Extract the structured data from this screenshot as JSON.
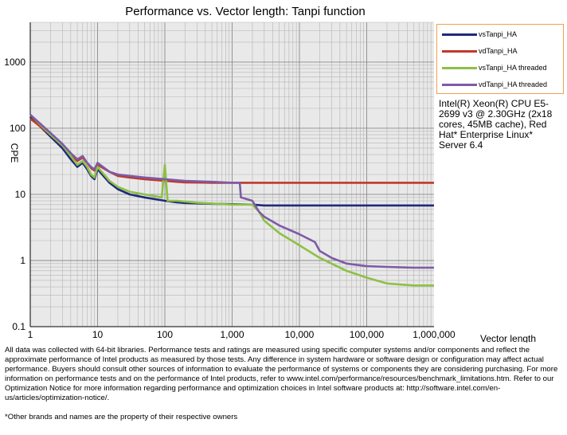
{
  "chart_data": {
    "type": "line",
    "title": "Performance vs. Vector length: Tanpi function",
    "xlabel": "Vector length",
    "ylabel": "CPE",
    "x_scale": "log",
    "y_scale": "log",
    "xlim": [
      1,
      1000000
    ],
    "ylim": [
      0.1,
      4000
    ],
    "x_ticks": [
      1,
      10,
      100,
      1000,
      10000,
      100000,
      1000000
    ],
    "x_tick_labels": [
      "1",
      "10",
      "100",
      "1,000",
      "10,000",
      "100,000",
      "1,000,000"
    ],
    "y_ticks": [
      0.1,
      1,
      10,
      100,
      1000
    ],
    "y_tick_labels": [
      "0.1",
      "1",
      "10",
      "100",
      "1000"
    ],
    "grid": true,
    "legend_position": "right",
    "series": [
      {
        "name": "vsTanpi_HA",
        "color": "#1f2a7a",
        "x": [
          1,
          2,
          3,
          4,
          5,
          6,
          7,
          8,
          9,
          10,
          15,
          20,
          30,
          50,
          100,
          150,
          200,
          500,
          1000,
          2000,
          3000,
          10000,
          100000,
          1000000
        ],
        "y": [
          150,
          75,
          50,
          34,
          26,
          30,
          24,
          19,
          17,
          24,
          15,
          12,
          10,
          9,
          8,
          7.6,
          7.4,
          7.2,
          7.1,
          7,
          6.8,
          6.8,
          6.8,
          6.8
        ]
      },
      {
        "name": "vdTanpi_HA",
        "color": "#c0392b",
        "x": [
          1,
          2,
          3,
          4,
          5,
          6,
          7,
          8,
          9,
          10,
          15,
          20,
          30,
          50,
          100,
          150,
          200,
          500,
          1000,
          2000,
          10000,
          100000,
          1000000
        ],
        "y": [
          140,
          80,
          55,
          40,
          32,
          36,
          30,
          25,
          23,
          28,
          22,
          19,
          18,
          17,
          16,
          15.5,
          15.2,
          15,
          15,
          15,
          15,
          15,
          15
        ]
      },
      {
        "name": "vsTanpi_HA threaded",
        "color": "#8dc045",
        "x": [
          1,
          2,
          3,
          4,
          5,
          6,
          7,
          8,
          9,
          10,
          15,
          20,
          30,
          50,
          90,
          100,
          110,
          150,
          300,
          1000,
          2000,
          2500,
          3000,
          5000,
          10000,
          20000,
          50000,
          100000,
          200000,
          500000,
          1000000
        ],
        "y": [
          160,
          80,
          55,
          38,
          28,
          32,
          26,
          20,
          18,
          26,
          16,
          13,
          11,
          10,
          9,
          28,
          8,
          8,
          7.5,
          7,
          7,
          5.5,
          4,
          2.6,
          1.7,
          1.1,
          0.7,
          0.55,
          0.45,
          0.42,
          0.42
        ]
      },
      {
        "name": "vdTanpi_HA threaded",
        "color": "#7d5ba6",
        "x": [
          1,
          2,
          3,
          4,
          5,
          6,
          7,
          8,
          9,
          10,
          15,
          20,
          30,
          50,
          100,
          200,
          500,
          1000,
          1300,
          1350,
          2000,
          2500,
          3000,
          5000,
          10000,
          17000,
          20000,
          30000,
          50000,
          100000,
          200000,
          500000,
          1000000
        ],
        "y": [
          160,
          85,
          58,
          42,
          34,
          38,
          30,
          26,
          24,
          30,
          22,
          20,
          19,
          18,
          17,
          16,
          15.5,
          15,
          15,
          9,
          8,
          5.5,
          4.6,
          3.4,
          2.5,
          1.9,
          1.4,
          1.1,
          0.9,
          0.82,
          0.8,
          0.78,
          0.78
        ]
      }
    ]
  },
  "legend": {
    "items": [
      {
        "label": "vsTanpi_HA",
        "color": "#1f2a7a"
      },
      {
        "label": "vdTanpi_HA",
        "color": "#c0392b"
      },
      {
        "label": "vsTanpi_HA threaded",
        "color": "#8dc045"
      },
      {
        "label": "vdTanpi_HA threaded",
        "color": "#7d5ba6"
      }
    ]
  },
  "cpu_note": "Intel(R) Xeon(R) CPU E5-\n2699 v3 @ 2.30GHz (2x18\ncores, 45MB cache), Red\nHat* Enterprise Linux*\nServer 6.4",
  "disclaimer": "All data was collected with 64-bit libraries. Performance tests and ratings are measured using specific computer systems and/or components and reflect the approximate performance of Intel products as measured by those tests.  Any difference in system hardware or software design or configuration may affect actual performance. Buyers should consult other sources of information to evaluate  the performance of systems or components they are considering purchasing. For more information on performance tests and on the performance of Intel products, refer to www.intel.com/performance/resources/benchmark_limitations.htm.  Refer to our Optimization  Notice for more information regarding performance and optimization  choices in Intel software products at: http://software.intel.com/en-us/articles/optimization-notice/.",
  "footnote": "*Other brands and names are the property of their respective owners"
}
